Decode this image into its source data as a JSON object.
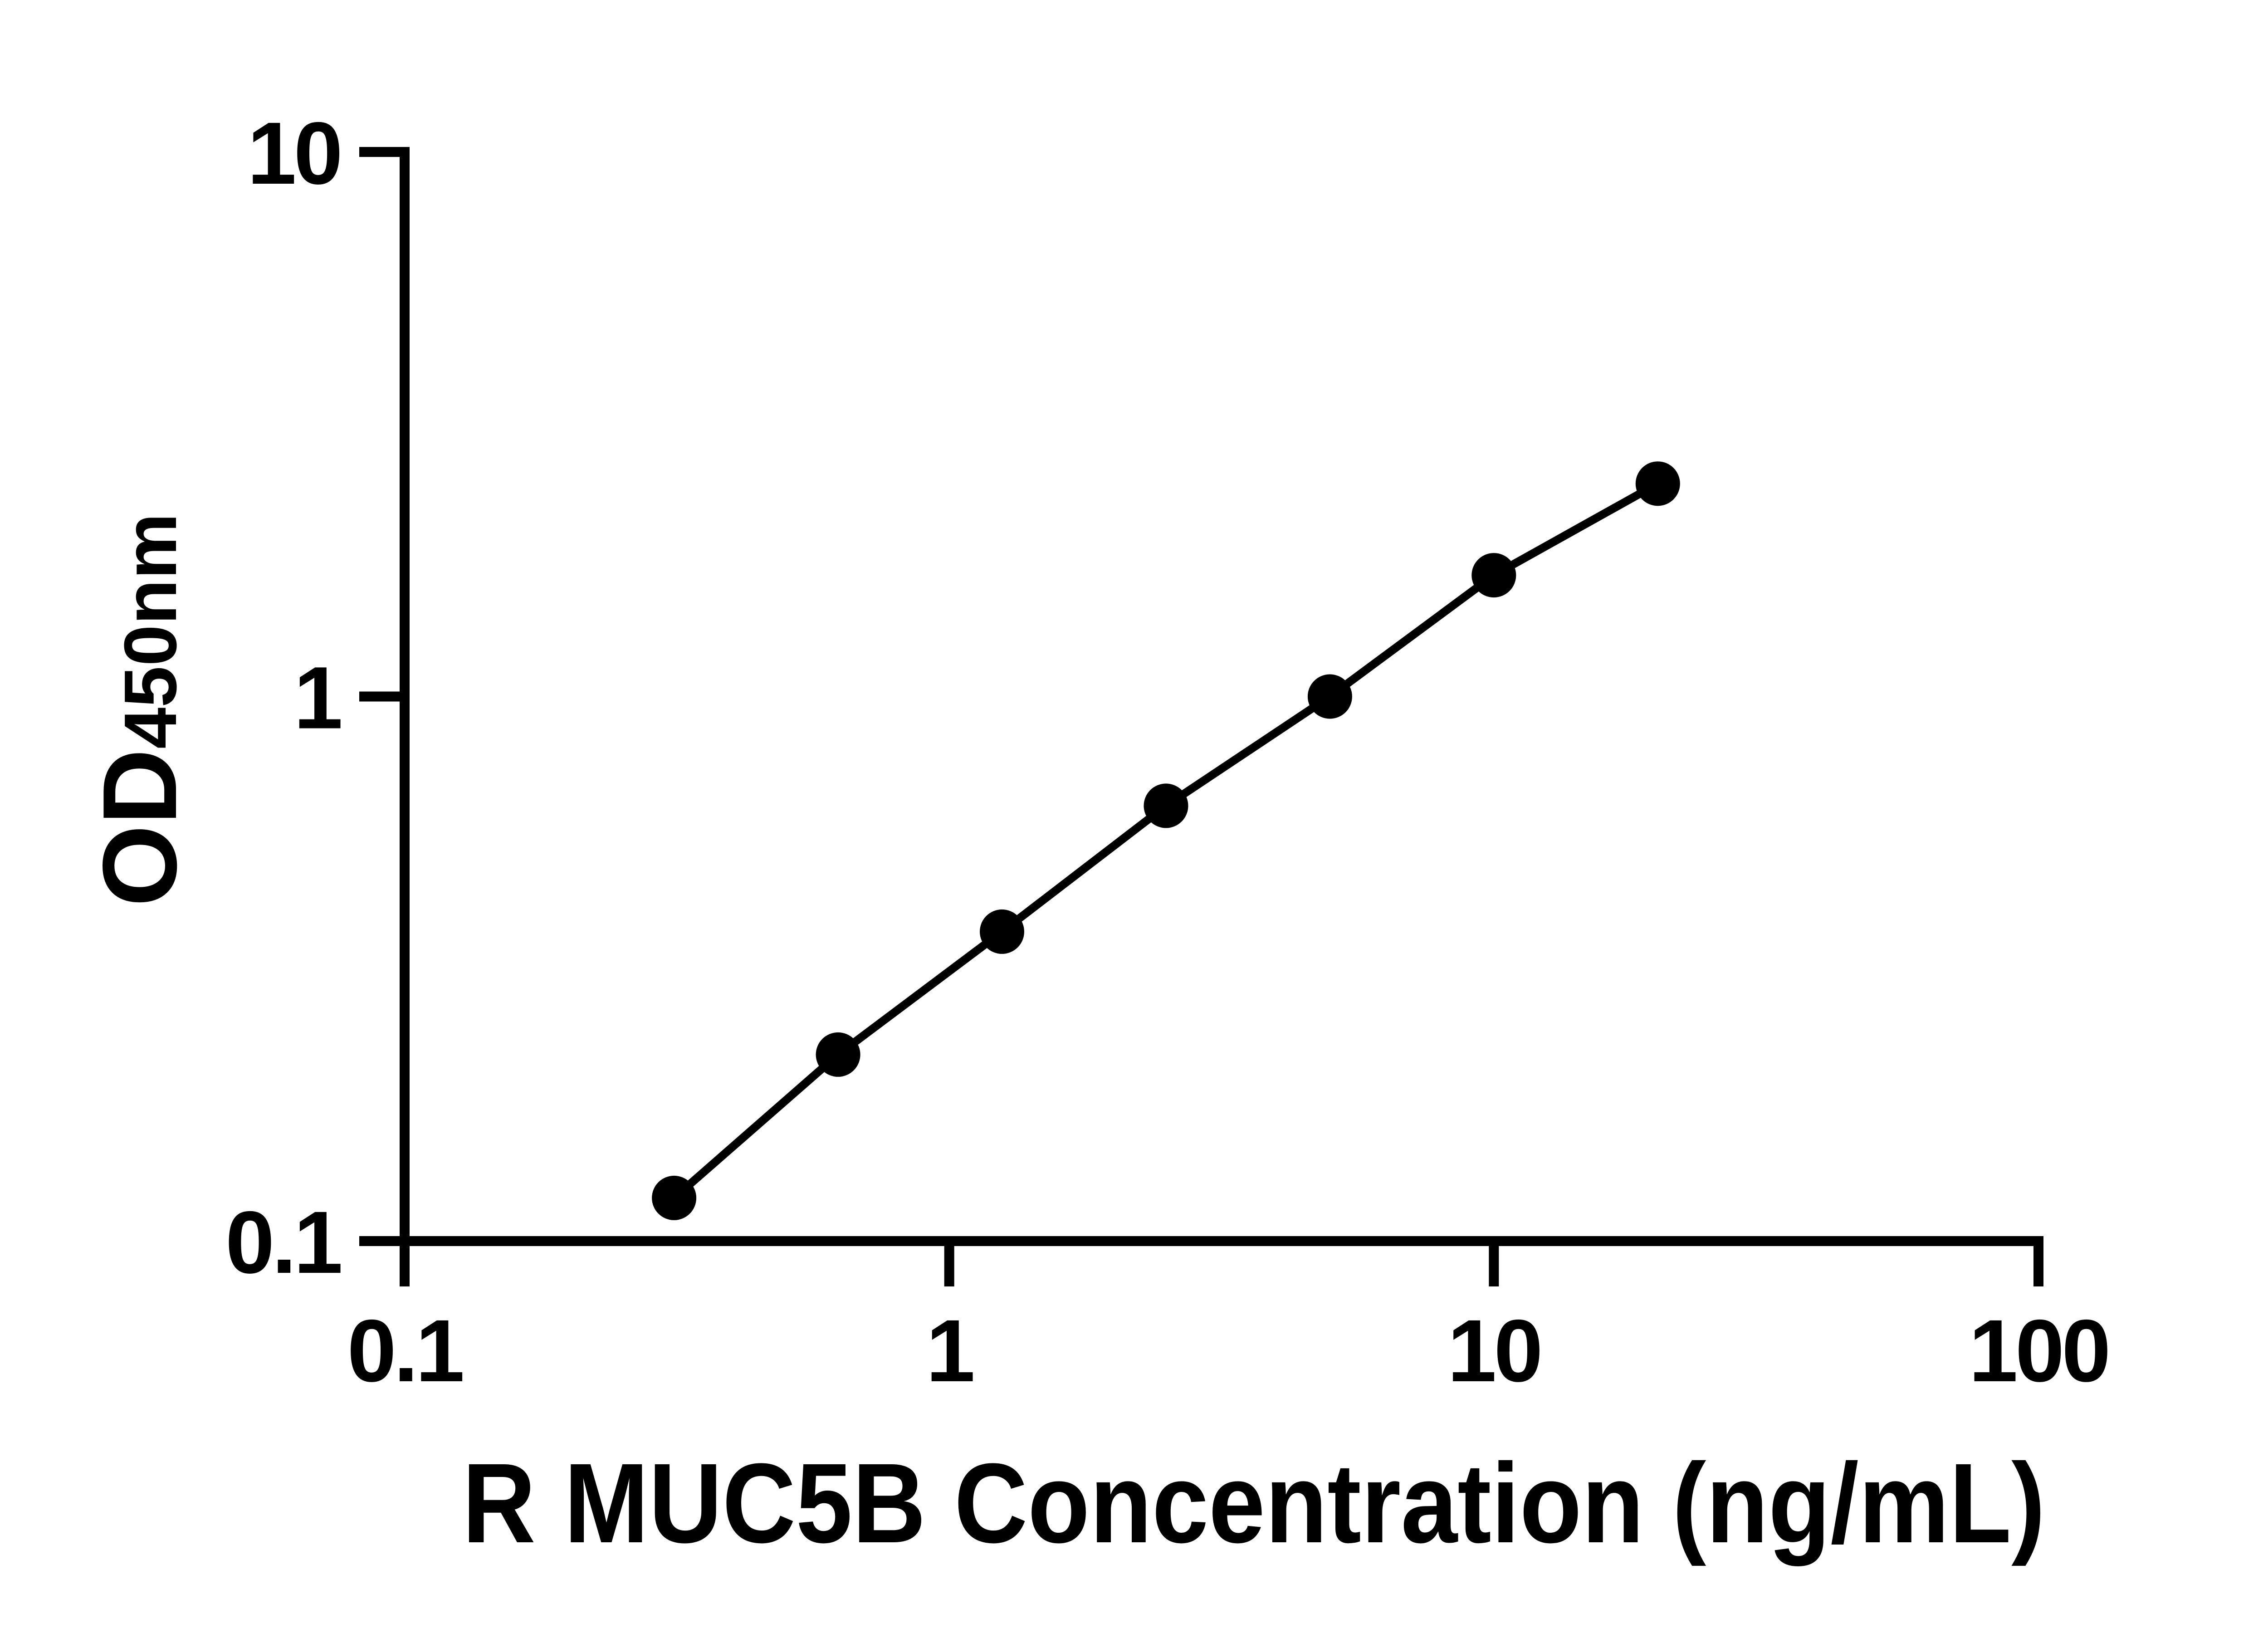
{
  "figure": {
    "background_color": "#ffffff",
    "ink_color": "#000000",
    "kind": "ELISA standard curve plot"
  },
  "chart_data": {
    "type": "scatter",
    "title": "",
    "xlabel": "R MUC5B Concentration (ng/mL)",
    "ylabel_main": "OD",
    "ylabel_sub": "450nm",
    "x_scale": "log10",
    "y_scale": "log10",
    "xlim": [
      0.1,
      100
    ],
    "ylim": [
      0.1,
      10
    ],
    "grid": false,
    "legend": null,
    "x_ticks": [
      {
        "value": 0.1,
        "label": "0.1"
      },
      {
        "value": 1,
        "label": "1"
      },
      {
        "value": 10,
        "label": "10"
      },
      {
        "value": 100,
        "label": "100"
      }
    ],
    "y_ticks": [
      {
        "value": 10,
        "label": "10"
      },
      {
        "value": 1,
        "label": "1"
      },
      {
        "value": 0.1,
        "label": "0.1"
      }
    ],
    "series": [
      {
        "name": "standard-curve",
        "marker": "filled-circle",
        "line": "solid",
        "color": "#000000",
        "points": [
          {
            "x": 0.3125,
            "y": 0.12
          },
          {
            "x": 0.625,
            "y": 0.22
          },
          {
            "x": 1.25,
            "y": 0.37
          },
          {
            "x": 2.5,
            "y": 0.63
          },
          {
            "x": 5,
            "y": 1.0
          },
          {
            "x": 10,
            "y": 1.67
          },
          {
            "x": 20,
            "y": 2.46
          }
        ]
      }
    ]
  }
}
